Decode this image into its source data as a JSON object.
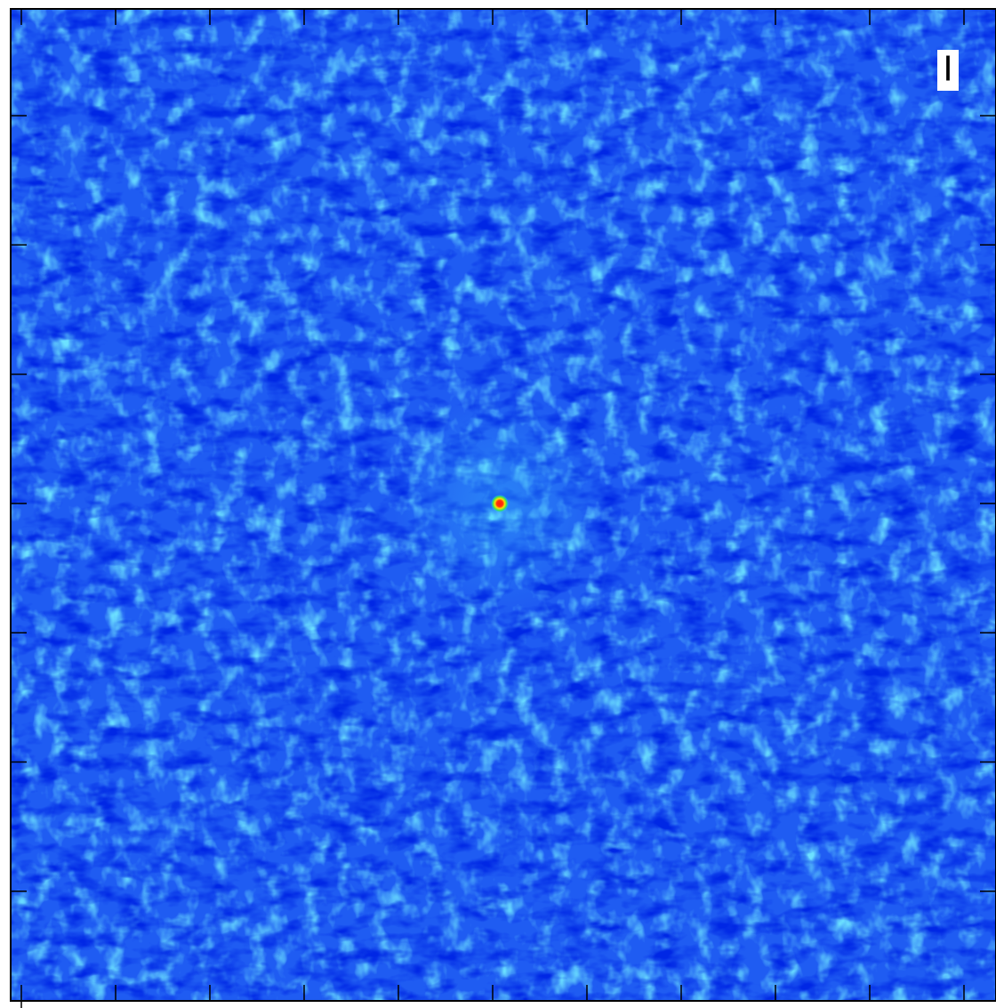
{
  "image": {
    "label": "I"
  }
}
